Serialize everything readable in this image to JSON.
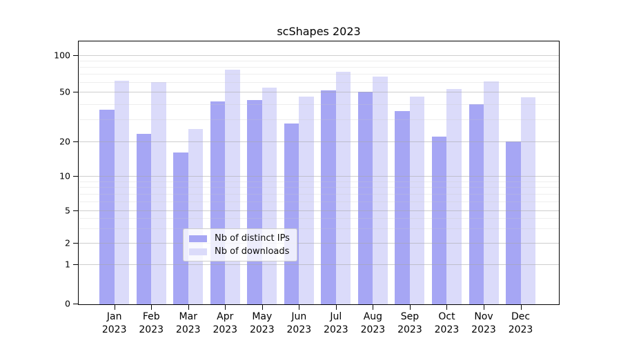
{
  "title": "scShapes 2023",
  "chart_data": {
    "type": "bar",
    "title": "scShapes 2023",
    "y_scale": "symlog",
    "y_ticks": [
      0,
      1,
      2,
      5,
      10,
      20,
      50,
      100
    ],
    "y_minor_gridlines": [
      3,
      4,
      6,
      7,
      8,
      9,
      30,
      40,
      60,
      70,
      80,
      90
    ],
    "categories": [
      "Jan",
      "Feb",
      "Mar",
      "Apr",
      "May",
      "Jun",
      "Jul",
      "Aug",
      "Sep",
      "Oct",
      "Nov",
      "Dec"
    ],
    "year_label": "2023",
    "grid": true,
    "legend_position": "lower center",
    "series": [
      {
        "name": "Nb of distinct IPs",
        "color": "#a6a6f4",
        "values": [
          36,
          23,
          16,
          42,
          43,
          28,
          51,
          50,
          35,
          22,
          40,
          20
        ]
      },
      {
        "name": "Nb of downloads",
        "color": "#dbdbfa",
        "values": [
          62,
          60,
          25,
          76,
          54,
          46,
          73,
          67,
          46,
          53,
          61,
          45
        ]
      }
    ],
    "colors": {
      "axis": "#000000",
      "text": "#000000",
      "grid_major": "#d4d4d4",
      "grid_minor": "#ededed",
      "legend_border": "#cccccc"
    }
  }
}
